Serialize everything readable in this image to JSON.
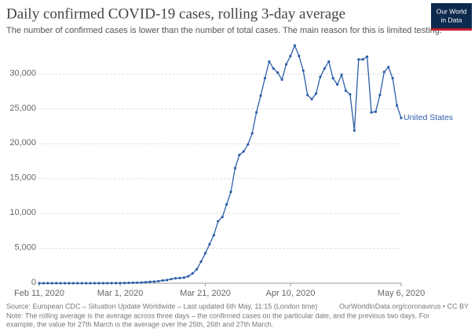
{
  "chart_data": {
    "type": "line",
    "title": "Daily confirmed COVID-19 cases, rolling 3-day average",
    "subtitle": "The number of confirmed cases is lower than the number of total cases. The main reason for this is limited testing.",
    "logo": [
      "Our World",
      "in Data"
    ],
    "source": "Source: European CDC – Situation Update Worldwide – Last updated 6th May, 11:15 (London time)",
    "url": "OurWorldInData.org/coronavirus • CC BY",
    "note": [
      "Note: The rolling average is the average across three days – the confirmed cases on the particular date, and the previous two days. For",
      "example, the value for 27th March is the average over the 25th, 26th and 27th March."
    ],
    "grid": true,
    "x": [
      "2020-02-11",
      "2020-02-12",
      "2020-02-13",
      "2020-02-14",
      "2020-02-15",
      "2020-02-16",
      "2020-02-17",
      "2020-02-18",
      "2020-02-19",
      "2020-02-20",
      "2020-02-21",
      "2020-02-22",
      "2020-02-23",
      "2020-02-24",
      "2020-02-25",
      "2020-02-26",
      "2020-02-27",
      "2020-02-28",
      "2020-02-29",
      "2020-03-01",
      "2020-03-02",
      "2020-03-03",
      "2020-03-04",
      "2020-03-05",
      "2020-03-06",
      "2020-03-07",
      "2020-03-08",
      "2020-03-09",
      "2020-03-10",
      "2020-03-11",
      "2020-03-12",
      "2020-03-13",
      "2020-03-14",
      "2020-03-15",
      "2020-03-16",
      "2020-03-17",
      "2020-03-18",
      "2020-03-19",
      "2020-03-20",
      "2020-03-21",
      "2020-03-22",
      "2020-03-23",
      "2020-03-24",
      "2020-03-25",
      "2020-03-26",
      "2020-03-27",
      "2020-03-28",
      "2020-03-29",
      "2020-03-30",
      "2020-03-31",
      "2020-04-01",
      "2020-04-02",
      "2020-04-03",
      "2020-04-04",
      "2020-04-05",
      "2020-04-06",
      "2020-04-07",
      "2020-04-08",
      "2020-04-09",
      "2020-04-10",
      "2020-04-11",
      "2020-04-12",
      "2020-04-13",
      "2020-04-14",
      "2020-04-15",
      "2020-04-16",
      "2020-04-17",
      "2020-04-18",
      "2020-04-19",
      "2020-04-20",
      "2020-04-21",
      "2020-04-22",
      "2020-04-23",
      "2020-04-24",
      "2020-04-25",
      "2020-04-26",
      "2020-04-27",
      "2020-04-28",
      "2020-04-29",
      "2020-04-30",
      "2020-05-01",
      "2020-05-02",
      "2020-05-03",
      "2020-05-04",
      "2020-05-05",
      "2020-05-06"
    ],
    "series": [
      {
        "name": "United States",
        "color": "#2c5ea8",
        "values": [
          1,
          0,
          0,
          1,
          1,
          0,
          0,
          0,
          0,
          0,
          1,
          2,
          3,
          3,
          4,
          6,
          8,
          10,
          15,
          20,
          30,
          50,
          70,
          80,
          100,
          150,
          200,
          230,
          300,
          400,
          450,
          600,
          700,
          750,
          800,
          1000,
          1400,
          2000,
          3100,
          4300,
          5600,
          6900,
          8900,
          9500,
          11300,
          13100,
          16500,
          18400,
          18900,
          19900,
          21500,
          24500,
          26900,
          29400,
          31800,
          30800,
          30200,
          29200,
          31400,
          32600,
          34100,
          32600,
          30500,
          27000,
          26400,
          27200,
          29600,
          30800,
          31800,
          29400,
          28500,
          29900,
          27600,
          27100,
          21900,
          32100,
          32100,
          32500,
          24500,
          24600,
          27000,
          30300,
          31000,
          29400,
          25500,
          23700
        ]
      }
    ],
    "xlim": [
      "2020-02-11",
      "2020-05-06"
    ],
    "xticks": [
      {
        "value": "2020-02-11",
        "label": "Feb 11, 2020"
      },
      {
        "value": "2020-03-01",
        "label": "Mar 1, 2020"
      },
      {
        "value": "2020-03-21",
        "label": "Mar 21, 2020"
      },
      {
        "value": "2020-04-10",
        "label": "Apr 10, 2020"
      },
      {
        "value": "2020-05-06",
        "label": "May 6, 2020"
      }
    ],
    "ylim": [
      0,
      35000
    ],
    "yticks": [
      0,
      {
        "value": 5000,
        "label": "5,000"
      },
      {
        "value": 10000,
        "label": "10,000"
      },
      {
        "value": 15000,
        "label": "15,000"
      },
      {
        "value": 20000,
        "label": "20,000"
      },
      {
        "value": 25000,
        "label": "25,000"
      },
      {
        "value": 30000,
        "label": "30,000"
      }
    ]
  }
}
